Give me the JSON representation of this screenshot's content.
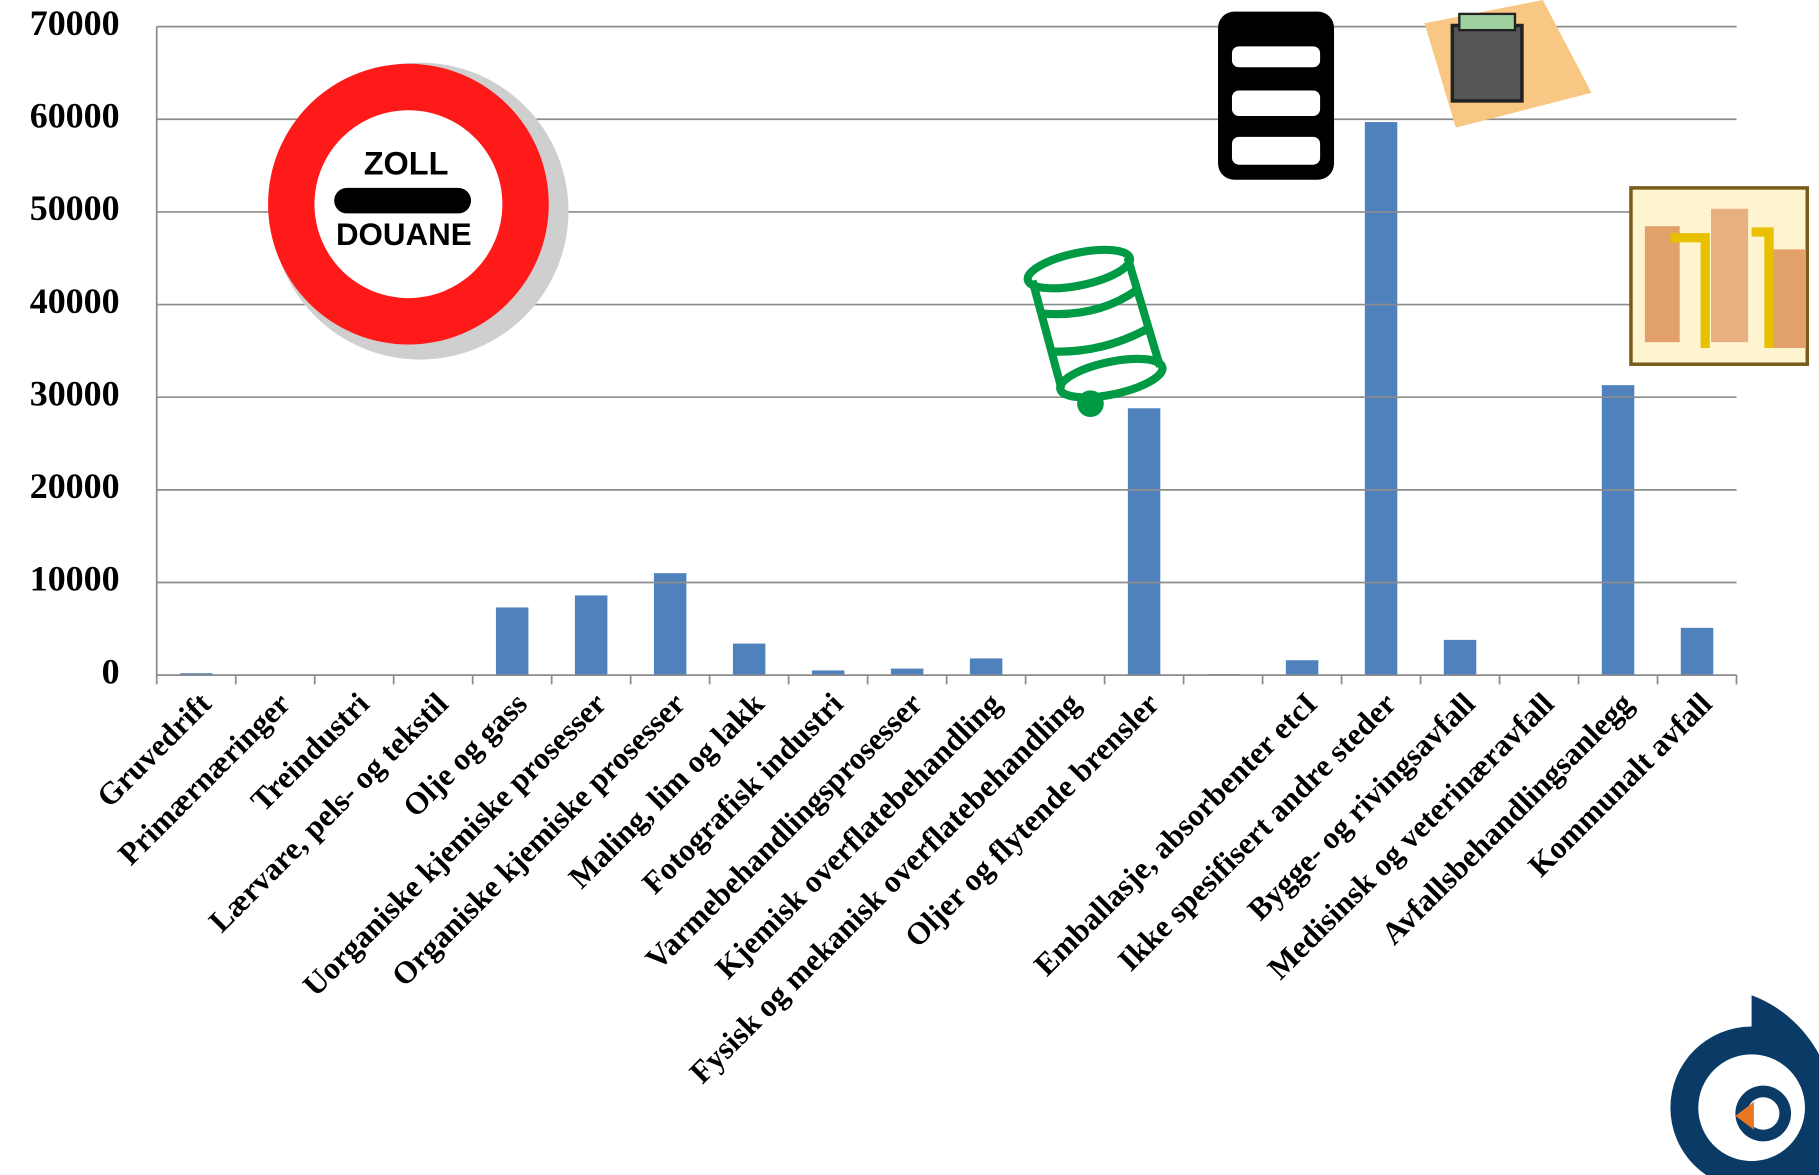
{
  "chart_data": {
    "type": "bar",
    "categories": [
      "Gruvedrift",
      "Primærnæringer",
      "Treindustri",
      "Lærvare, pels- og tekstil",
      "Olje og gass",
      "Uorganiske kjemiske prosesser",
      "Organiske kjemiske prosesser",
      "Maling, lim og lakk",
      "Fotografisk industri",
      "Varmebehandlingsprosesser",
      "Kjemisk overflatebehandling",
      "Fysisk og mekanisk overflatebehandling",
      "Oljer og flytende brensler",
      null,
      "Emballasje, absorbenter etcI",
      "Ikke spesifisert andre steder",
      "Bygge- og rivingsavfall",
      "Medisinsk og veterinæravfall",
      "Avfallsbehandlingsanlegg",
      "Kommunalt avfall"
    ],
    "values": [
      200,
      0,
      0,
      0,
      7300,
      8600,
      11000,
      3400,
      500,
      700,
      1800,
      0,
      28800,
      100,
      1600,
      59700,
      3800,
      0,
      31300,
      5100
    ],
    "color": "#4f81bd",
    "ylim": [
      0,
      70000
    ],
    "yticks": [
      0,
      10000,
      20000,
      30000,
      40000,
      50000,
      60000,
      70000
    ],
    "grid": true
  },
  "sign": {
    "top": "ZOLL",
    "bottom": "DOUANE"
  }
}
